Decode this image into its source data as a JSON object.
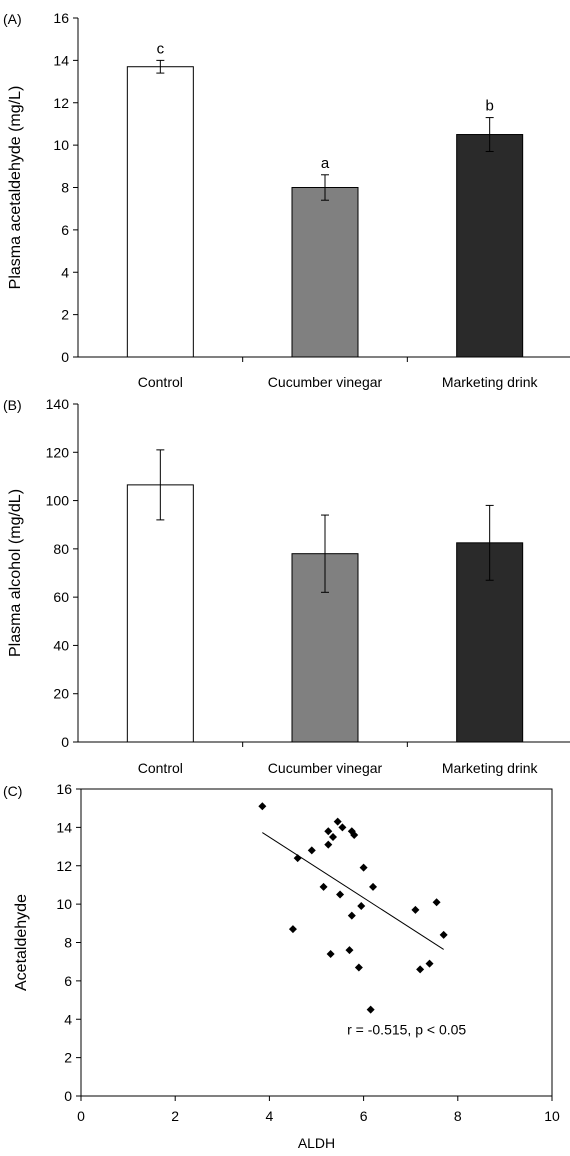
{
  "figure": {
    "panels": [
      "(A)",
      "(B)",
      "(C)"
    ]
  },
  "chart_data": [
    {
      "type": "bar",
      "panel": "(A)",
      "categories": [
        "Control",
        "Cucumber vinegar",
        "Marketing drink"
      ],
      "values": [
        13.7,
        8.0,
        10.5
      ],
      "errors": [
        0.3,
        0.6,
        0.8
      ],
      "bar_colors": [
        "#ffffff",
        "#808080",
        "#2a2a2a"
      ],
      "significance_letters": [
        "c",
        "a",
        "b"
      ],
      "title": "",
      "xlabel": "",
      "ylabel": "Plasma acetaldehyde (mg/L)",
      "ylim": [
        0,
        16
      ],
      "yticks": [
        0,
        2,
        4,
        6,
        8,
        10,
        12,
        14,
        16
      ],
      "grid": false,
      "legend": "none"
    },
    {
      "type": "bar",
      "panel": "(B)",
      "categories": [
        "Control",
        "Cucumber vinegar",
        "Marketing drink"
      ],
      "values": [
        106.5,
        78,
        82.5
      ],
      "errors": [
        14.5,
        16,
        15.5
      ],
      "bar_colors": [
        "#ffffff",
        "#808080",
        "#2a2a2a"
      ],
      "title": "",
      "xlabel": "",
      "ylabel": "Plasma alcohol (mg/dL)",
      "ylim": [
        0,
        140
      ],
      "yticks": [
        0,
        20,
        40,
        60,
        80,
        100,
        120,
        140
      ],
      "grid": false,
      "legend": "none"
    },
    {
      "type": "scatter",
      "panel": "(C)",
      "points": [
        [
          3.85,
          15.1
        ],
        [
          4.5,
          8.7
        ],
        [
          4.6,
          12.4
        ],
        [
          4.9,
          12.8
        ],
        [
          5.15,
          10.9
        ],
        [
          5.25,
          13.8
        ],
        [
          5.25,
          13.1
        ],
        [
          5.3,
          7.4
        ],
        [
          5.35,
          13.5
        ],
        [
          5.45,
          14.3
        ],
        [
          5.5,
          10.5
        ],
        [
          5.55,
          14.0
        ],
        [
          5.7,
          7.6
        ],
        [
          5.75,
          9.4
        ],
        [
          5.75,
          13.8
        ],
        [
          5.8,
          13.6
        ],
        [
          5.9,
          6.7
        ],
        [
          5.95,
          9.9
        ],
        [
          6.0,
          11.9
        ],
        [
          6.15,
          4.5
        ],
        [
          6.2,
          10.9
        ],
        [
          7.1,
          9.7
        ],
        [
          7.2,
          6.6
        ],
        [
          7.4,
          6.9
        ],
        [
          7.55,
          10.1
        ],
        [
          7.7,
          8.4
        ]
      ],
      "trendline": {
        "x": [
          3.85,
          7.7
        ],
        "y": [
          13.73,
          7.64
        ]
      },
      "annotation": "r = -0.515, p < 0.05",
      "title": "",
      "xlabel": "ALDH",
      "ylabel": "Acetaldehyde",
      "xlim": [
        0,
        10
      ],
      "ylim": [
        0,
        16
      ],
      "xticks": [
        0,
        2,
        4,
        6,
        8,
        10
      ],
      "yticks": [
        0,
        2,
        4,
        6,
        8,
        10,
        12,
        14,
        16
      ],
      "grid": false,
      "legend": "none"
    }
  ]
}
